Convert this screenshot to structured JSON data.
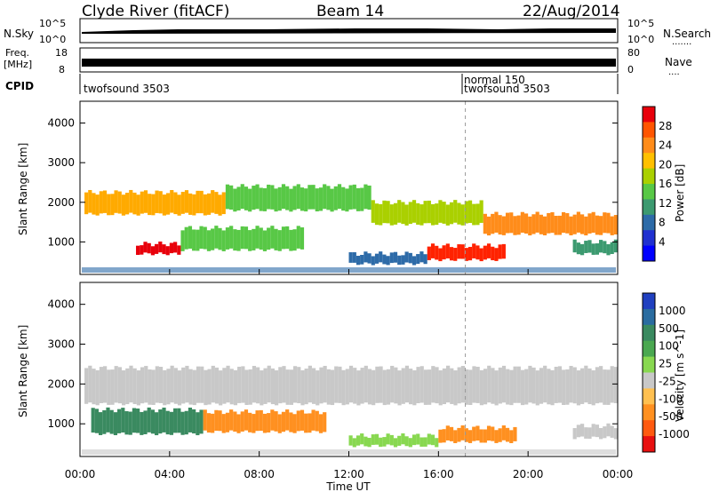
{
  "header": {
    "station": "Clyde River (fitACF)",
    "beam": "Beam 14",
    "date": "22/Aug/2014"
  },
  "top_panels": {
    "nsky_label": "N.Sky",
    "nsky_ticks": [
      "10^5",
      "10^0"
    ],
    "nsearch_label": "N.Search",
    "nsearch_ticks": [
      "10^5",
      "10^0"
    ],
    "freq_label_1": "Freq.",
    "freq_label_2": "[MHz]",
    "freq_ticks": [
      "18",
      "8"
    ],
    "nave_label": "Nave",
    "nave_ticks": [
      "80",
      "0"
    ],
    "cpid_label": "CPID",
    "cpid_entries": [
      "twofsound 3503",
      "normal 150",
      "twofsound 3503"
    ]
  },
  "power_scale": {
    "title": "Power [dB]",
    "ticks": [
      "28",
      "24",
      "20",
      "16",
      "12",
      "8",
      "4"
    ],
    "colors": [
      "#e8000b",
      "#ff5500",
      "#ff8c1a",
      "#ffc000",
      "#aad000",
      "#58c846",
      "#3c9a70",
      "#2d6ba8",
      "#2030d0",
      "#0000ff"
    ]
  },
  "velocity_scale": {
    "title": "Velocity [m s^-1]",
    "ticks": [
      "1000",
      "500",
      "100",
      "25",
      "-25",
      "-100",
      "-500",
      "-1000"
    ],
    "colors": [
      "#2040c0",
      "#2a6ca0",
      "#3a8a60",
      "#4aa850",
      "#88d850",
      "#c8c8c8",
      "#ffc050",
      "#ff9020",
      "#ff5a10",
      "#e81010"
    ]
  },
  "chart_data": {
    "type": "heatmap",
    "title": "Clyde River (fitACF) Beam 14 22/Aug/2014",
    "xlabel": "Time UT",
    "ylabel": "Slant Range [km]",
    "x_ticks": [
      "00:00",
      "04:00",
      "08:00",
      "12:00",
      "16:00",
      "20:00",
      "00:00"
    ],
    "xlim_hours": [
      0,
      24
    ],
    "y_ticks": [
      "1000",
      "2000",
      "3000",
      "4000"
    ],
    "ylim_km": [
      180,
      4550
    ],
    "cpid_change_hour": 17.2,
    "power_bands": [
      {
        "h0": 0.2,
        "h1": 6.5,
        "r0": 1700,
        "r1": 2250,
        "color": "#ffaa00"
      },
      {
        "h0": 6.5,
        "h1": 13,
        "r0": 1800,
        "r1": 2400,
        "color": "#58c846"
      },
      {
        "h0": 13,
        "h1": 18,
        "r0": 1450,
        "r1": 2000,
        "color": "#aad000"
      },
      {
        "h0": 18,
        "h1": 24,
        "r0": 1200,
        "r1": 1700,
        "color": "#ff8c1a"
      },
      {
        "h0": 2.5,
        "h1": 4.5,
        "r0": 700,
        "r1": 950,
        "color": "#e8000b"
      },
      {
        "h0": 4.5,
        "h1": 10,
        "r0": 800,
        "r1": 1350,
        "color": "#58c846"
      },
      {
        "h0": 15.5,
        "h1": 19,
        "r0": 550,
        "r1": 900,
        "color": "#ff2200"
      },
      {
        "h0": 12,
        "h1": 15.5,
        "r0": 450,
        "r1": 700,
        "color": "#2d6ba8"
      },
      {
        "h0": 22,
        "h1": 24,
        "r0": 700,
        "r1": 1000,
        "color": "#3c9a70"
      }
    ],
    "velocity_bands": [
      {
        "h0": 0.2,
        "h1": 24,
        "r0": 1500,
        "r1": 2400,
        "color": "#c8c8c8"
      },
      {
        "h0": 0.5,
        "h1": 5.5,
        "r0": 750,
        "r1": 1350,
        "color": "#3a8a60"
      },
      {
        "h0": 5.5,
        "h1": 11,
        "r0": 800,
        "r1": 1300,
        "color": "#ff9020"
      },
      {
        "h0": 12,
        "h1": 16,
        "r0": 450,
        "r1": 700,
        "color": "#88d850"
      },
      {
        "h0": 16,
        "h1": 19.5,
        "r0": 550,
        "r1": 900,
        "color": "#ff9020"
      },
      {
        "h0": 22,
        "h1": 24,
        "r0": 650,
        "r1": 950,
        "color": "#c8c8c8"
      }
    ]
  }
}
